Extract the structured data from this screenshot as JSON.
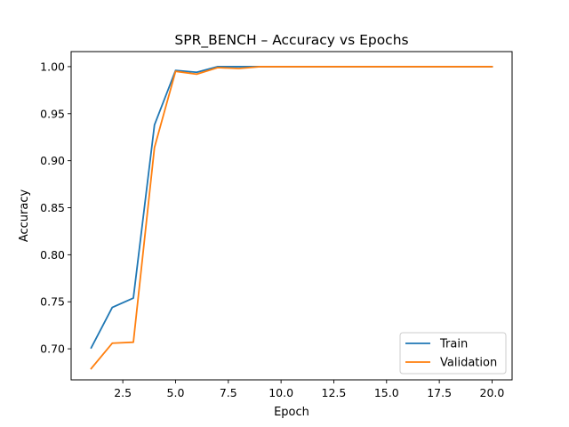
{
  "chart_data": {
    "type": "line",
    "title": "SPR_BENCH – Accuracy vs Epochs",
    "xlabel": "Epoch",
    "ylabel": "Accuracy",
    "xlim": [
      0.05,
      20.95
    ],
    "ylim": [
      0.667,
      1.016
    ],
    "xticks": [
      2.5,
      5.0,
      7.5,
      10.0,
      12.5,
      15.0,
      17.5,
      20.0
    ],
    "xtick_labels": [
      "2.5",
      "5.0",
      "7.5",
      "10.0",
      "12.5",
      "15.0",
      "17.5",
      "20.0"
    ],
    "yticks": [
      0.7,
      0.75,
      0.8,
      0.85,
      0.9,
      0.95,
      1.0
    ],
    "ytick_labels": [
      "0.70",
      "0.75",
      "0.80",
      "0.85",
      "0.90",
      "0.95",
      "1.00"
    ],
    "grid": false,
    "legend_position": "lower-right",
    "x": [
      1,
      2,
      3,
      4,
      5,
      6,
      7,
      8,
      9,
      10,
      11,
      12,
      13,
      14,
      15,
      16,
      17,
      18,
      19,
      20
    ],
    "series": [
      {
        "name": "Train",
        "color": "#1f77b4",
        "values": [
          0.701,
          0.744,
          0.754,
          0.938,
          0.996,
          0.994,
          1.0,
          1.0,
          1.0,
          1.0,
          1.0,
          1.0,
          1.0,
          1.0,
          1.0,
          1.0,
          1.0,
          1.0,
          1.0,
          1.0
        ]
      },
      {
        "name": "Validation",
        "color": "#ff7f0e",
        "values": [
          0.679,
          0.706,
          0.707,
          0.914,
          0.995,
          0.992,
          0.999,
          0.998,
          1.0,
          1.0,
          1.0,
          1.0,
          1.0,
          1.0,
          1.0,
          1.0,
          1.0,
          1.0,
          1.0,
          1.0
        ]
      }
    ]
  }
}
